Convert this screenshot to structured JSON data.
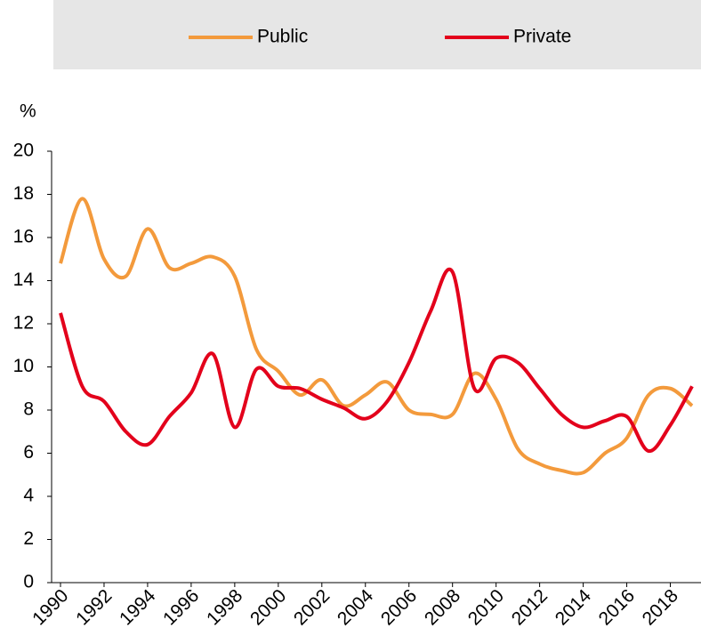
{
  "chart_data": {
    "type": "line",
    "y_axis_label": "%",
    "x": [
      1990,
      1991,
      1992,
      1993,
      1994,
      1995,
      1996,
      1997,
      1998,
      1999,
      2000,
      2001,
      2002,
      2003,
      2004,
      2005,
      2006,
      2007,
      2008,
      2009,
      2010,
      2011,
      2012,
      2013,
      2014,
      2015,
      2016,
      2017,
      2018,
      2019
    ],
    "series": [
      {
        "name": "Public",
        "color": "#f39a3c",
        "values": [
          14.8,
          17.8,
          15.0,
          14.2,
          16.4,
          14.6,
          14.8,
          15.1,
          14.2,
          10.8,
          9.8,
          8.7,
          9.4,
          8.2,
          8.7,
          9.3,
          8.0,
          7.8,
          7.8,
          9.7,
          8.5,
          6.2,
          5.5,
          5.2,
          5.1,
          6.0,
          6.7,
          8.7,
          9.0,
          8.2
        ]
      },
      {
        "name": "Private",
        "color": "#e3001b",
        "values": [
          12.5,
          9.1,
          8.4,
          7.0,
          6.4,
          7.7,
          8.8,
          10.6,
          7.2,
          9.9,
          9.1,
          9.0,
          8.5,
          8.1,
          7.6,
          8.4,
          10.2,
          12.6,
          14.4,
          9.0,
          10.4,
          10.2,
          9.0,
          7.8,
          7.2,
          7.5,
          7.7,
          6.1,
          7.3,
          9.1
        ]
      }
    ],
    "xlim": [
      1990,
      2019
    ],
    "xticks": [
      1990,
      1992,
      1994,
      1996,
      1998,
      2000,
      2002,
      2004,
      2006,
      2008,
      2010,
      2012,
      2014,
      2016,
      2018
    ],
    "ylim": [
      0,
      20
    ],
    "yticks": [
      0,
      2,
      4,
      6,
      8,
      10,
      12,
      14,
      16,
      18,
      20
    ],
    "legend": "top"
  }
}
